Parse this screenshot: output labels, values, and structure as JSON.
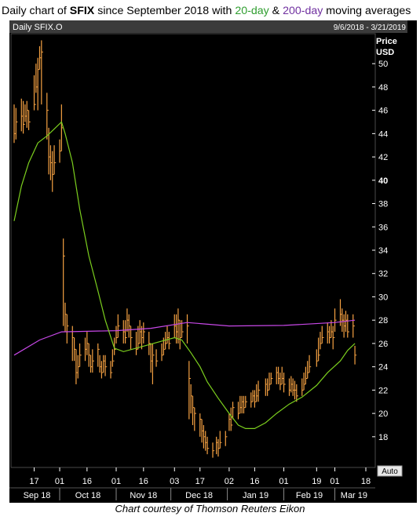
{
  "header": {
    "title_pre": "Daily chart of ",
    "ticker": "SFIX",
    "title_mid": " since September 2018 with ",
    "ma20_label": "20-day",
    "amp": " & ",
    "ma200_label": "200-day",
    "title_post": " moving averages"
  },
  "caption": "Chart courtesy of Thomson Reuters Eikon",
  "colors": {
    "background": "#000000",
    "candles": "#f5a142",
    "ma20": "#7ccf1e",
    "ma200": "#c848e8",
    "header_bar": "#3b3b3b",
    "axis_text": "#ffffff"
  },
  "chart_data": {
    "type": "line",
    "panel_title": "Daily SFIX.O",
    "date_range": "9/6/2018 - 3/21/2019",
    "ylabel": "Price",
    "yunit": "USD",
    "ylim": [
      15.5,
      52.5
    ],
    "y_ticks": [
      18,
      20,
      22,
      24,
      26,
      28,
      30,
      32,
      34,
      36,
      38,
      40,
      42,
      44,
      46,
      48,
      50
    ],
    "y_tick_labels": [
      "18",
      "20",
      "22",
      "24",
      "26",
      "28",
      "30",
      "32",
      "34",
      "36",
      "38",
      "40",
      "42",
      "44",
      "46",
      "48",
      "50"
    ],
    "bold_y_tick": "40",
    "x_ticks": [
      "17",
      "01",
      "16",
      "01",
      "16",
      "03",
      "17",
      "02",
      "16",
      "01",
      "19",
      "01",
      "18"
    ],
    "months": [
      "Sep 18",
      "Oct 18",
      "Nov 18",
      "Dec 18",
      "Jan 19",
      "Feb 19",
      "Mar 19"
    ],
    "scale_button": "Auto",
    "series": [
      {
        "name": "20-day",
        "points": [
          [
            "2018-09-06",
            36.5
          ],
          [
            "2018-09-10",
            39.5
          ],
          [
            "2018-09-14",
            41.5
          ],
          [
            "2018-09-19",
            43.2
          ],
          [
            "2018-09-24",
            43.8
          ],
          [
            "2018-09-28",
            44.4
          ],
          [
            "2018-10-02",
            45.0
          ],
          [
            "2018-10-04",
            44.0
          ],
          [
            "2018-10-08",
            41.5
          ],
          [
            "2018-10-12",
            37.5
          ],
          [
            "2018-10-17",
            33.5
          ],
          [
            "2018-10-22",
            30.5
          ],
          [
            "2018-10-26",
            28.0
          ],
          [
            "2018-10-31",
            25.6
          ],
          [
            "2018-11-05",
            25.3
          ],
          [
            "2018-11-12",
            25.6
          ],
          [
            "2018-11-19",
            25.9
          ],
          [
            "2018-11-26",
            26.2
          ],
          [
            "2018-12-03",
            26.5
          ],
          [
            "2018-12-07",
            26.3
          ],
          [
            "2018-12-12",
            25.2
          ],
          [
            "2018-12-17",
            24.0
          ],
          [
            "2018-12-21",
            22.7
          ],
          [
            "2018-12-27",
            21.3
          ],
          [
            "2019-01-02",
            20.0
          ],
          [
            "2019-01-07",
            19.0
          ],
          [
            "2019-01-11",
            18.7
          ],
          [
            "2019-01-16",
            18.7
          ],
          [
            "2019-01-22",
            19.2
          ],
          [
            "2019-01-28",
            20.0
          ],
          [
            "2019-02-04",
            20.8
          ],
          [
            "2019-02-11",
            21.4
          ],
          [
            "2019-02-19",
            22.4
          ],
          [
            "2019-02-25",
            23.5
          ],
          [
            "2019-03-04",
            24.5
          ],
          [
            "2019-03-08",
            25.4
          ],
          [
            "2019-03-12",
            26.0
          ]
        ]
      },
      {
        "name": "200-day",
        "points": [
          [
            "2018-09-06",
            25.0
          ],
          [
            "2018-09-20",
            26.3
          ],
          [
            "2018-10-02",
            27.0
          ],
          [
            "2018-11-01",
            27.1
          ],
          [
            "2018-11-20",
            27.3
          ],
          [
            "2018-12-10",
            27.8
          ],
          [
            "2019-01-02",
            27.5
          ],
          [
            "2019-02-01",
            27.55
          ],
          [
            "2019-03-01",
            27.8
          ],
          [
            "2019-03-12",
            28.0
          ]
        ]
      },
      {
        "name": "price",
        "style": "bars",
        "bars": [
          [
            "2018-09-06",
            44.0,
            46.5,
            43.2
          ],
          [
            "2018-09-07",
            45.0,
            46.2,
            43.5
          ],
          [
            "2018-09-10",
            45.5,
            47.0,
            44.2
          ],
          [
            "2018-09-11",
            44.8,
            46.8,
            44.0
          ],
          [
            "2018-09-12",
            45.5,
            46.5,
            45.0
          ],
          [
            "2018-09-13",
            46.0,
            46.8,
            44.5
          ],
          [
            "2018-09-14",
            45.0,
            46.0,
            44.3
          ],
          [
            "2018-09-17",
            46.5,
            49.0,
            46.0
          ],
          [
            "2018-09-18",
            48.0,
            50.0,
            47.5
          ],
          [
            "2018-09-19",
            49.5,
            50.5,
            46.0
          ],
          [
            "2018-09-20",
            50.5,
            51.5,
            49.5
          ],
          [
            "2018-09-21",
            51.0,
            52.0,
            46.5
          ],
          [
            "2018-09-24",
            46.0,
            47.5,
            43.5
          ],
          [
            "2018-09-25",
            42.0,
            44.5,
            40.5
          ],
          [
            "2018-09-26",
            41.5,
            43.0,
            40.0
          ],
          [
            "2018-09-27",
            40.5,
            42.5,
            39.0
          ],
          [
            "2018-09-28",
            41.5,
            43.0,
            40.5
          ],
          [
            "2018-10-01",
            42.5,
            43.5,
            41.5
          ],
          [
            "2018-10-02",
            44.5,
            46.5,
            42.5
          ],
          [
            "2018-10-03",
            33.5,
            35.0,
            27.5
          ],
          [
            "2018-10-04",
            28.5,
            29.5,
            27.0
          ],
          [
            "2018-10-05",
            27.5,
            28.5,
            26.0
          ],
          [
            "2018-10-08",
            26.5,
            27.5,
            24.5
          ],
          [
            "2018-10-09",
            25.5,
            26.5,
            24.5
          ],
          [
            "2018-10-10",
            23.5,
            25.5,
            22.5
          ],
          [
            "2018-10-11",
            24.0,
            25.0,
            23.0
          ],
          [
            "2018-10-12",
            25.0,
            26.0,
            24.0
          ],
          [
            "2018-10-15",
            25.5,
            26.5,
            24.5
          ],
          [
            "2018-10-16",
            26.0,
            27.0,
            25.0
          ],
          [
            "2018-10-17",
            25.0,
            26.0,
            24.0
          ],
          [
            "2018-10-18",
            24.0,
            25.0,
            23.5
          ],
          [
            "2018-10-19",
            24.5,
            25.5,
            23.5
          ],
          [
            "2018-10-22",
            25.5,
            26.0,
            24.0
          ],
          [
            "2018-10-23",
            24.0,
            25.0,
            23.5
          ],
          [
            "2018-10-24",
            23.5,
            24.5,
            23.0
          ],
          [
            "2018-10-25",
            24.5,
            25.0,
            23.5
          ],
          [
            "2018-10-26",
            24.0,
            25.0,
            23.2
          ],
          [
            "2018-10-29",
            23.5,
            24.5,
            23.0
          ],
          [
            "2018-10-30",
            24.5,
            25.5,
            24.0
          ],
          [
            "2018-10-31",
            25.5,
            26.5,
            25.0
          ],
          [
            "2018-11-01",
            26.5,
            27.5,
            26.0
          ],
          [
            "2018-11-02",
            27.5,
            28.5,
            26.5
          ],
          [
            "2018-11-05",
            27.0,
            28.0,
            26.0
          ],
          [
            "2018-11-06",
            26.5,
            28.0,
            26.0
          ],
          [
            "2018-11-07",
            28.0,
            29.0,
            27.0
          ],
          [
            "2018-11-08",
            27.5,
            28.5,
            26.5
          ],
          [
            "2018-11-09",
            26.5,
            27.5,
            25.5
          ],
          [
            "2018-11-12",
            25.5,
            27.0,
            25.0
          ],
          [
            "2018-11-13",
            26.0,
            27.5,
            25.5
          ],
          [
            "2018-11-14",
            27.0,
            28.0,
            26.0
          ],
          [
            "2018-11-15",
            26.5,
            27.5,
            25.5
          ],
          [
            "2018-11-16",
            27.0,
            27.8,
            26.0
          ],
          [
            "2018-11-19",
            26.0,
            27.0,
            25.0
          ],
          [
            "2018-11-20",
            24.5,
            26.0,
            23.5
          ],
          [
            "2018-11-21",
            25.0,
            26.0,
            22.5
          ],
          [
            "2018-11-23",
            24.5,
            25.5,
            24.0
          ],
          [
            "2018-11-26",
            25.0,
            26.0,
            24.5
          ],
          [
            "2018-11-27",
            25.5,
            26.5,
            25.0
          ],
          [
            "2018-11-28",
            26.0,
            27.0,
            25.5
          ],
          [
            "2018-11-29",
            26.5,
            27.5,
            26.0
          ],
          [
            "2018-11-30",
            26.0,
            27.0,
            25.5
          ],
          [
            "2018-12-03",
            27.5,
            28.5,
            26.5
          ],
          [
            "2018-12-04",
            27.0,
            28.5,
            26.0
          ],
          [
            "2018-12-05",
            28.0,
            29.0,
            26.0
          ],
          [
            "2018-12-06",
            26.5,
            28.0,
            25.5
          ],
          [
            "2018-12-07",
            27.0,
            28.0,
            26.5
          ],
          [
            "2018-12-10",
            27.5,
            28.5,
            26.0
          ],
          [
            "2018-12-11",
            23.0,
            24.5,
            19.5
          ],
          [
            "2018-12-12",
            21.5,
            22.5,
            20.0
          ],
          [
            "2018-12-13",
            20.5,
            21.5,
            19.0
          ],
          [
            "2018-12-14",
            20.0,
            20.5,
            18.5
          ],
          [
            "2018-12-17",
            19.5,
            20.0,
            18.0
          ],
          [
            "2018-12-18",
            18.5,
            19.5,
            17.5
          ],
          [
            "2018-12-19",
            18.0,
            19.0,
            17.0
          ],
          [
            "2018-12-20",
            17.5,
            18.5,
            16.8
          ],
          [
            "2018-12-21",
            17.0,
            18.0,
            16.5
          ],
          [
            "2018-12-24",
            16.8,
            17.5,
            16.2
          ],
          [
            "2018-12-26",
            17.5,
            18.0,
            16.5
          ],
          [
            "2018-12-27",
            17.0,
            17.8,
            16.3
          ],
          [
            "2018-12-28",
            17.5,
            18.5,
            17.0
          ],
          [
            "2018-12-31",
            18.0,
            18.5,
            17.2
          ],
          [
            "2019-01-02",
            19.5,
            20.0,
            18.5
          ],
          [
            "2019-01-03",
            19.0,
            20.5,
            18.5
          ],
          [
            "2019-01-04",
            20.5,
            21.0,
            19.5
          ],
          [
            "2019-01-07",
            20.0,
            21.0,
            19.5
          ],
          [
            "2019-01-08",
            20.5,
            21.5,
            20.0
          ],
          [
            "2019-01-09",
            21.0,
            21.5,
            20.0
          ],
          [
            "2019-01-10",
            20.5,
            21.5,
            20.0
          ],
          [
            "2019-01-11",
            21.0,
            21.5,
            20.5
          ],
          [
            "2019-01-14",
            21.0,
            21.8,
            20.5
          ],
          [
            "2019-01-15",
            21.5,
            22.0,
            21.0
          ],
          [
            "2019-01-16",
            21.0,
            22.0,
            20.5
          ],
          [
            "2019-01-17",
            21.5,
            22.5,
            21.0
          ],
          [
            "2019-01-18",
            22.0,
            22.8,
            21.0
          ],
          [
            "2019-01-22",
            22.5,
            23.0,
            21.5
          ],
          [
            "2019-01-23",
            22.0,
            23.0,
            21.5
          ],
          [
            "2019-01-24",
            22.5,
            23.5,
            22.0
          ],
          [
            "2019-01-25",
            23.0,
            23.5,
            22.5
          ],
          [
            "2019-01-28",
            23.5,
            24.0,
            22.5
          ],
          [
            "2019-01-29",
            23.0,
            24.0,
            22.5
          ],
          [
            "2019-01-30",
            22.5,
            23.5,
            22.0
          ],
          [
            "2019-01-31",
            23.0,
            24.0,
            22.5
          ],
          [
            "2019-02-01",
            22.5,
            23.5,
            21.8
          ],
          [
            "2019-02-04",
            22.0,
            23.0,
            21.5
          ],
          [
            "2019-02-05",
            22.5,
            23.2,
            21.8
          ],
          [
            "2019-02-06",
            22.0,
            23.0,
            21.5
          ],
          [
            "2019-02-07",
            22.0,
            22.8,
            21.2
          ],
          [
            "2019-02-08",
            21.5,
            22.5,
            21.0
          ],
          [
            "2019-02-11",
            22.0,
            23.0,
            21.5
          ],
          [
            "2019-02-12",
            22.5,
            23.5,
            22.0
          ],
          [
            "2019-02-13",
            23.0,
            24.0,
            22.5
          ],
          [
            "2019-02-14",
            23.5,
            24.5,
            23.0
          ],
          [
            "2019-02-15",
            24.0,
            25.0,
            23.5
          ],
          [
            "2019-02-19",
            24.5,
            25.5,
            24.0
          ],
          [
            "2019-02-20",
            25.0,
            26.5,
            24.5
          ],
          [
            "2019-02-21",
            26.0,
            27.0,
            25.5
          ],
          [
            "2019-02-22",
            26.5,
            27.5,
            26.0
          ],
          [
            "2019-02-25",
            27.0,
            27.8,
            26.0
          ],
          [
            "2019-02-26",
            26.5,
            27.5,
            26.0
          ],
          [
            "2019-02-27",
            27.0,
            28.0,
            26.5
          ],
          [
            "2019-02-28",
            26.5,
            27.5,
            25.5
          ],
          [
            "2019-03-01",
            28.0,
            29.0,
            27.0
          ],
          [
            "2019-03-04",
            28.5,
            29.8,
            27.5
          ],
          [
            "2019-03-05",
            28.0,
            29.0,
            27.0
          ],
          [
            "2019-03-06",
            27.5,
            28.5,
            26.5
          ],
          [
            "2019-03-07",
            28.0,
            28.8,
            27.0
          ],
          [
            "2019-03-08",
            27.0,
            28.5,
            26.5
          ],
          [
            "2019-03-11",
            27.5,
            28.5,
            26.5
          ],
          [
            "2019-03-12",
            25.0,
            25.8,
            24.2
          ]
        ]
      }
    ]
  }
}
